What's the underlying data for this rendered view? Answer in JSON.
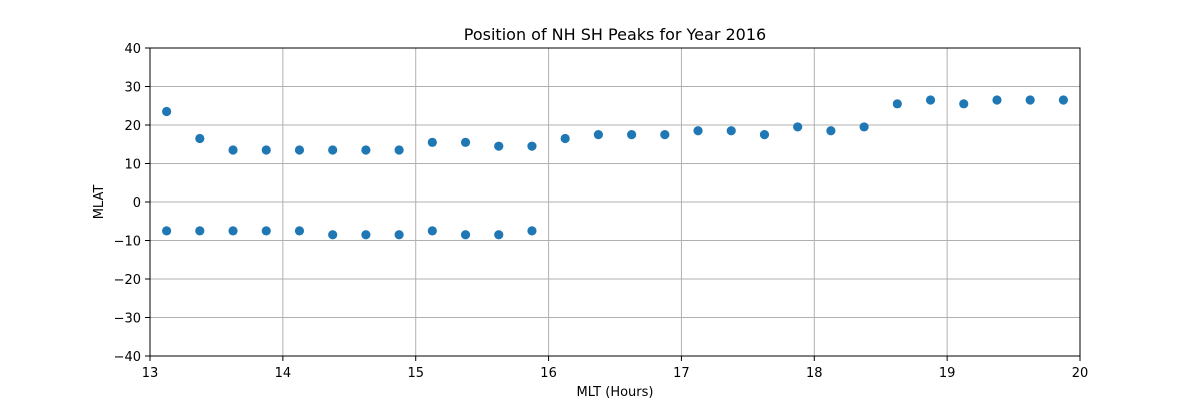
{
  "chart_data": {
    "type": "scatter",
    "title": "Position of NH SH Peaks for Year 2016",
    "xlabel": "MLT (Hours)",
    "ylabel": "MLAT",
    "xlim": [
      13,
      20
    ],
    "ylim": [
      -40,
      40
    ],
    "xticks": [
      13,
      14,
      15,
      16,
      17,
      18,
      19,
      20
    ],
    "yticks": [
      -40,
      -30,
      -20,
      -10,
      0,
      10,
      20,
      30,
      40
    ],
    "xtick_labels": [
      "13",
      "14",
      "15",
      "16",
      "17",
      "18",
      "19",
      "20"
    ],
    "ytick_labels": [
      "−40",
      "−30",
      "−20",
      "−10",
      "0",
      "10",
      "20",
      "30",
      "40"
    ],
    "grid": true,
    "marker_color": "#1f77b4",
    "series": [
      {
        "x": [
          13.125,
          13.375,
          13.625,
          13.875,
          14.125,
          14.375,
          14.625,
          14.875,
          15.125,
          15.375,
          15.625,
          15.875,
          16.125,
          16.375,
          16.625,
          16.875,
          17.125,
          17.375,
          17.625,
          17.875,
          18.125,
          18.375,
          18.625,
          18.875,
          19.125,
          19.375,
          19.625,
          19.875
        ],
        "y": [
          23.5,
          16.5,
          13.5,
          13.5,
          13.5,
          13.5,
          13.5,
          13.5,
          15.5,
          15.5,
          14.5,
          14.5,
          16.5,
          17.5,
          17.5,
          17.5,
          18.5,
          18.5,
          17.5,
          19.5,
          18.5,
          19.5,
          25.5,
          26.5,
          25.5,
          26.5,
          26.5,
          26.5
        ]
      },
      {
        "x": [
          13.125,
          13.375,
          13.625,
          13.875,
          14.125,
          14.375,
          14.625,
          14.875,
          15.125,
          15.375,
          15.625,
          15.875
        ],
        "y": [
          -7.5,
          -7.5,
          -7.5,
          -7.5,
          -7.5,
          -8.5,
          -8.5,
          -8.5,
          -7.5,
          -8.5,
          -8.5,
          -7.5
        ]
      }
    ]
  }
}
